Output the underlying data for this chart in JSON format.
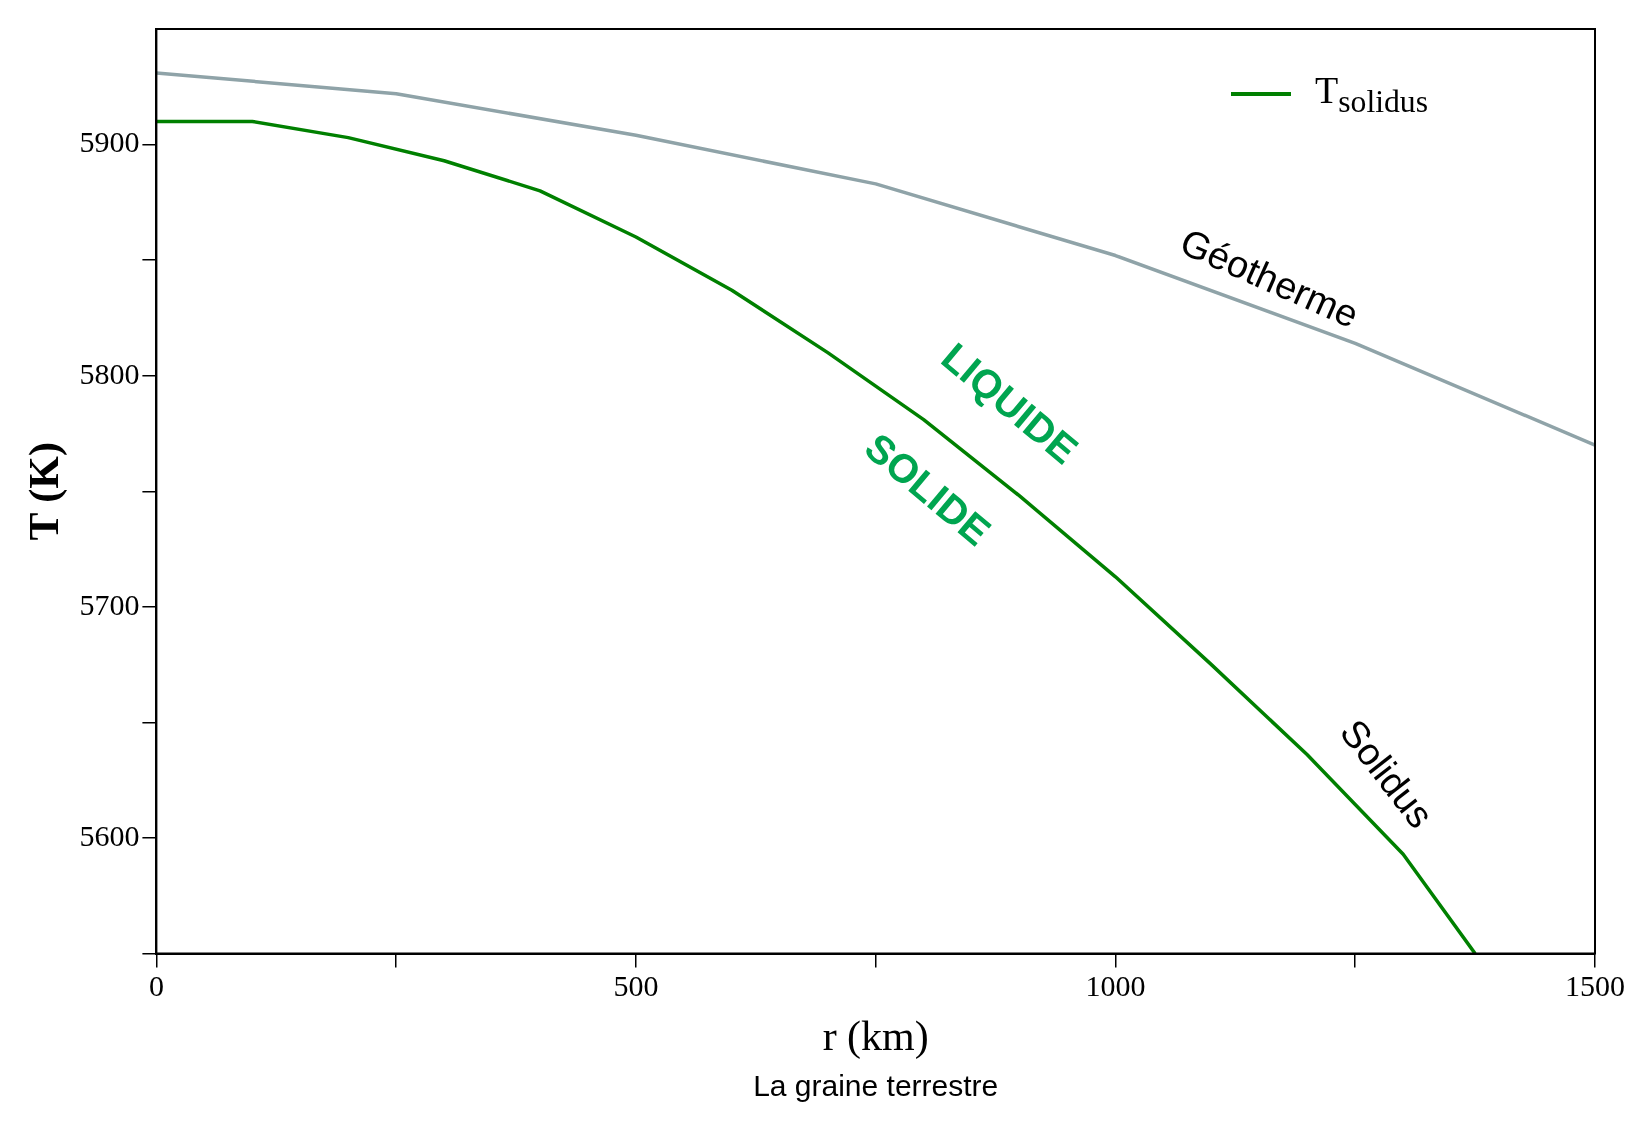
{
  "chart_data": {
    "type": "line",
    "xlabel": "r (km)",
    "ylabel": "T (K)",
    "xlim": [
      0,
      1500
    ],
    "xticks": [
      0,
      {
        "value": 250,
        "label": null
      },
      500,
      {
        "value": 750,
        "label": null
      },
      1000,
      {
        "value": 1250,
        "label": null
      },
      1500
    ],
    "ylim": [
      5550,
      5950
    ],
    "yticks": [
      {
        "value": 5550,
        "label": null
      },
      5600,
      {
        "value": 5650,
        "label": null
      },
      5700,
      {
        "value": 5750,
        "label": null
      },
      5800,
      {
        "value": 5850,
        "label": null
      },
      5900
    ],
    "series": [
      {
        "color": "#8fa3a8",
        "x": [
          0,
          250,
          500,
          750,
          1000,
          1250,
          1500
        ],
        "values": [
          5931,
          5922,
          5904,
          5883,
          5852,
          5814,
          5770
        ]
      },
      {
        "name": "T$_{solidus}$",
        "color": "#008000",
        "x": [
          0,
          100,
          200,
          300,
          400,
          500,
          600,
          700,
          800,
          900,
          1000,
          1100,
          1200,
          1300,
          1375
        ],
        "values": [
          5910,
          5910,
          5903,
          5893,
          5880,
          5860,
          5837,
          5810,
          5781,
          5748,
          5713,
          5675,
          5636,
          5593,
          5550
        ]
      }
    ],
    "annotations": [
      "Géotherme",
      "Solidus",
      "LIQUIDE",
      "SOLIDE",
      "La graine terrestre"
    ],
    "legend": "top right",
    "marker": "none",
    "line_style": "solid",
    "grid": false
  }
}
